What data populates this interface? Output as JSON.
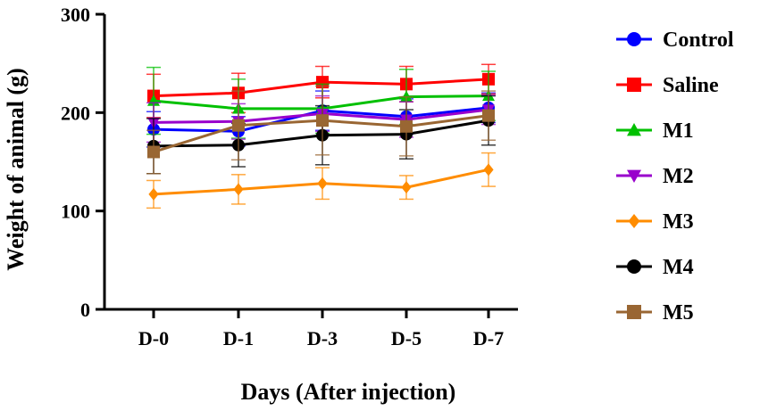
{
  "chart_data": {
    "type": "line",
    "title": "",
    "xlabel": "Days (After injection)",
    "ylabel": "Weight of animal (g)",
    "categories": [
      "D-0",
      "D-1",
      "D-3",
      "D-5",
      "D-7"
    ],
    "ylim": [
      0,
      300
    ],
    "yticks": [
      0,
      100,
      200,
      300
    ],
    "grid": false,
    "legend_position": "right",
    "series": [
      {
        "name": "Control",
        "color": "#0000ff",
        "marker": "circle",
        "values": [
          183,
          181,
          202,
          196,
          205
        ],
        "errors": [
          18,
          15,
          20,
          18,
          15
        ]
      },
      {
        "name": "Saline",
        "color": "#ff0000",
        "marker": "square",
        "values": [
          217,
          220,
          231,
          229,
          234
        ],
        "errors": [
          22,
          20,
          16,
          18,
          15
        ]
      },
      {
        "name": "M1",
        "color": "#00c000",
        "marker": "triangle-up",
        "values": [
          212,
          204,
          204,
          216,
          217
        ],
        "errors": [
          34,
          30,
          25,
          28,
          25
        ]
      },
      {
        "name": "M2",
        "color": "#9900cc",
        "marker": "triangle-down",
        "values": [
          190,
          191,
          199,
          193,
          203
        ],
        "errors": [
          20,
          18,
          18,
          18,
          15
        ]
      },
      {
        "name": "M3",
        "color": "#ff8c00",
        "marker": "diamond",
        "values": [
          117,
          122,
          128,
          124,
          142
        ],
        "errors": [
          14,
          15,
          16,
          12,
          17
        ]
      },
      {
        "name": "M4",
        "color": "#000000",
        "marker": "circle",
        "values": [
          166,
          167,
          177,
          178,
          192
        ],
        "errors": [
          28,
          22,
          30,
          25,
          25
        ]
      },
      {
        "name": "M5",
        "color": "#996633",
        "marker": "square",
        "values": [
          160,
          187,
          192,
          186,
          197
        ],
        "errors": [
          22,
          35,
          35,
          30,
          25
        ]
      }
    ]
  }
}
